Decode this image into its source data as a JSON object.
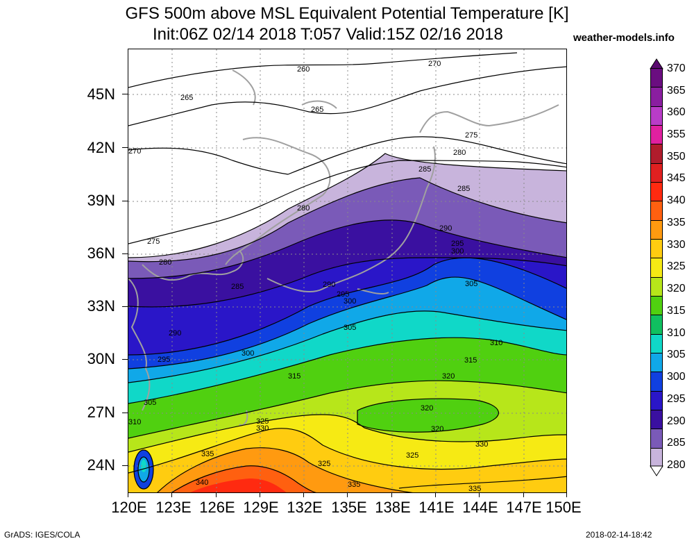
{
  "title": {
    "line1": "GFS 500m above MSL Equivalent Potential Temperature [K]",
    "line2": "Init:06Z 02/14 2018 T:057 Valid:15Z 02/16 2018",
    "site": "weather-models.info"
  },
  "axes": {
    "lat_labels": [
      "45N",
      "42N",
      "39N",
      "36N",
      "33N",
      "30N",
      "27N",
      "24N"
    ],
    "lon_labels": [
      "120E",
      "123E",
      "126E",
      "129E",
      "132E",
      "135E",
      "138E",
      "141E",
      "144E",
      "147E",
      "150E"
    ]
  },
  "colorbar": {
    "labels": [
      "370",
      "365",
      "360",
      "355",
      "350",
      "345",
      "340",
      "335",
      "330",
      "325",
      "320",
      "315",
      "310",
      "305",
      "300",
      "295",
      "290",
      "285",
      "280"
    ],
    "colors": [
      "#6a0d80",
      "#8a1ea0",
      "#b93cc8",
      "#e020a0",
      "#b01c2c",
      "#e02020",
      "#ff2a10",
      "#ff6010",
      "#ff9a10",
      "#ffcc10",
      "#f6ea14",
      "#b7e61a",
      "#50d010",
      "#10c060",
      "#10d8c8",
      "#10a8e8",
      "#1040e0",
      "#2a16c8",
      "#3a10a0",
      "#7a5ab8",
      "#c8b4dc"
    ]
  },
  "contour_labels": [
    "260",
    "265",
    "265",
    "270",
    "270",
    "275",
    "275",
    "280",
    "280",
    "280",
    "285",
    "285",
    "285",
    "290",
    "290",
    "290",
    "295",
    "295",
    "295",
    "300",
    "300",
    "300",
    "305",
    "305",
    "305",
    "310",
    "310",
    "315",
    "315",
    "320",
    "320",
    "320",
    "325",
    "325",
    "325",
    "330",
    "330",
    "335",
    "335",
    "335",
    "340"
  ],
  "footer": {
    "left": "GrADS: IGES/COLA",
    "right": "2018-02-14-18:42"
  }
}
